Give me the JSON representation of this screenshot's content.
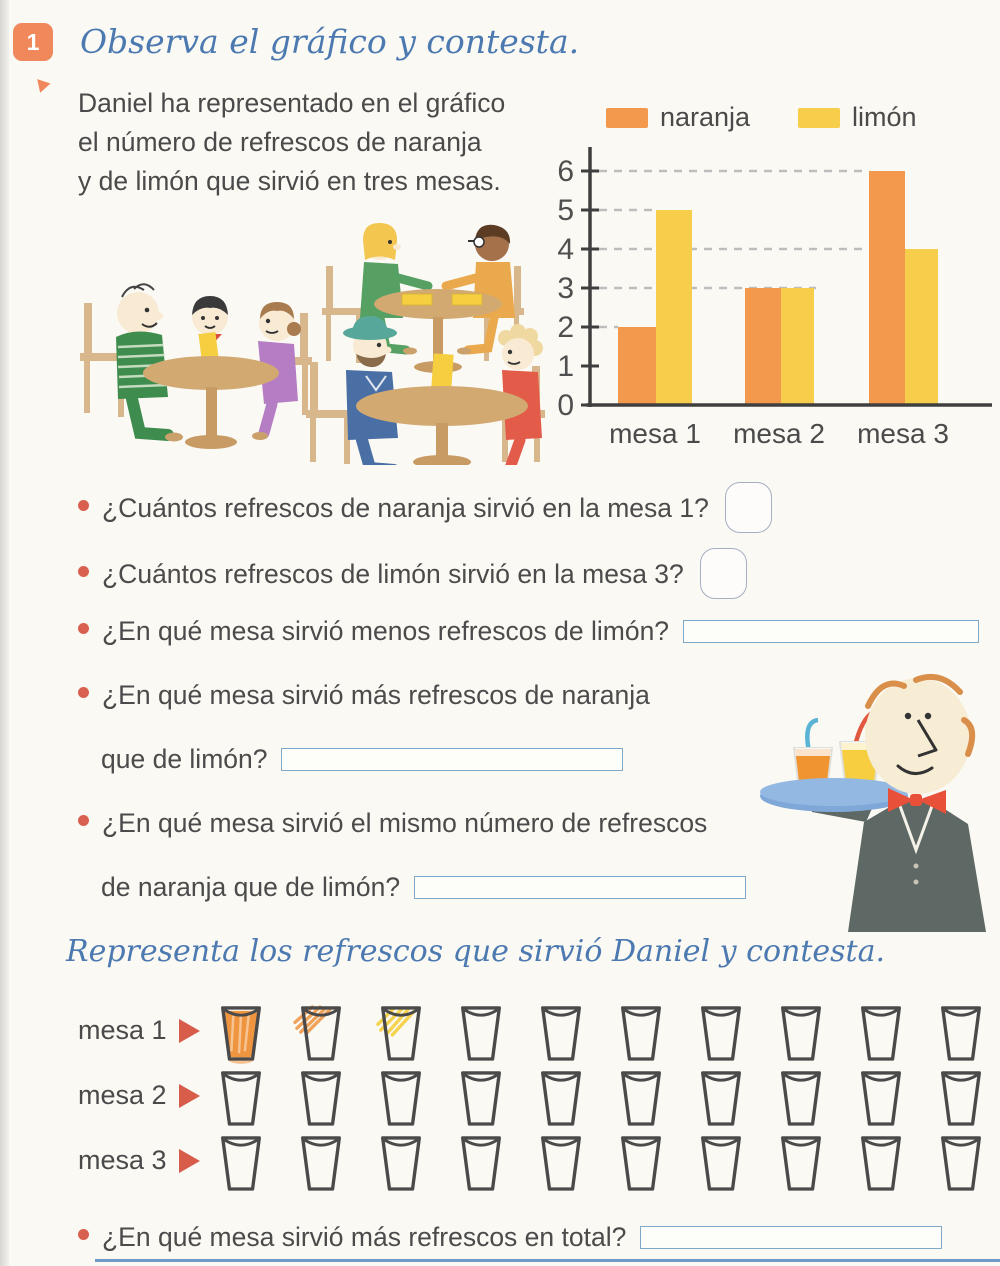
{
  "badge": {
    "number": "1"
  },
  "headings": {
    "main": "Observa el gráfico y contesta.",
    "second": "Representa los refrescos que sirvió Daniel y contesta."
  },
  "intro": {
    "lines": [
      "Daniel ha representado en el gráfico",
      "el número de refrescos de naranja",
      "y de limón que sirvió en tres mesas."
    ]
  },
  "chart_data": {
    "type": "bar",
    "categories": [
      "mesa 1",
      "mesa 2",
      "mesa 3"
    ],
    "series": [
      {
        "name": "naranja",
        "color": "#f2994e",
        "values": [
          2,
          3,
          6
        ]
      },
      {
        "name": "limón",
        "color": "#f6ce4b",
        "values": [
          5,
          3,
          4
        ]
      }
    ],
    "ylim": [
      0,
      6
    ],
    "yticks": [
      0,
      1,
      2,
      3,
      4,
      5,
      6
    ],
    "gridlines": [
      2,
      3,
      4,
      5,
      6
    ],
    "grid_style": "dashed",
    "legend_position": "top",
    "axis_color": "#3f3f3f",
    "grid_color": "#bdbdbd"
  },
  "questions": {
    "q1": {
      "text": "¿Cuántos refrescos de naranja sirvió en la mesa 1?",
      "answer_box": "rounded-small"
    },
    "q2": {
      "text": "¿Cuántos refrescos de limón sirvió en la mesa 3?",
      "answer_box": "rounded-small"
    },
    "q3": {
      "text": "¿En qué mesa sirvió menos refrescos de limón?",
      "answer_box": "line"
    },
    "q4": {
      "line1": "¿En qué mesa sirvió más refrescos de naranja",
      "line2": "que de limón?",
      "answer_box": "line"
    },
    "q5": {
      "line1": "¿En qué mesa sirvió el mismo número de refrescos",
      "line2": "de naranja que de limón?",
      "answer_box": "line"
    },
    "final": {
      "text": "¿En qué mesa sirvió más refrescos en total?",
      "answer_box": "line"
    }
  },
  "cups_activity": {
    "cup_count_per_row": 10,
    "rows": [
      {
        "label": "mesa 1",
        "cups": [
          "orange-full",
          "orange-scribble",
          "yellow-scribble",
          "empty",
          "empty",
          "empty",
          "empty",
          "empty",
          "empty",
          "empty"
        ]
      },
      {
        "label": "mesa 2",
        "cups": [
          "empty",
          "empty",
          "empty",
          "empty",
          "empty",
          "empty",
          "empty",
          "empty",
          "empty",
          "empty"
        ]
      },
      {
        "label": "mesa 3",
        "cups": [
          "empty",
          "empty",
          "empty",
          "empty",
          "empty",
          "empty",
          "empty",
          "empty",
          "empty",
          "empty"
        ]
      }
    ]
  },
  "colors": {
    "accent_badge": "#f0885c",
    "heading_blue": "#4b79b0",
    "bullet_red": "#d9604f",
    "cup_outline": "#4a4a4a",
    "cup_orange": "#f0953f",
    "cup_yellow": "#f5cf3e",
    "table_wood": "#d2a971",
    "answer_box_blue": "#7fa9c9"
  }
}
